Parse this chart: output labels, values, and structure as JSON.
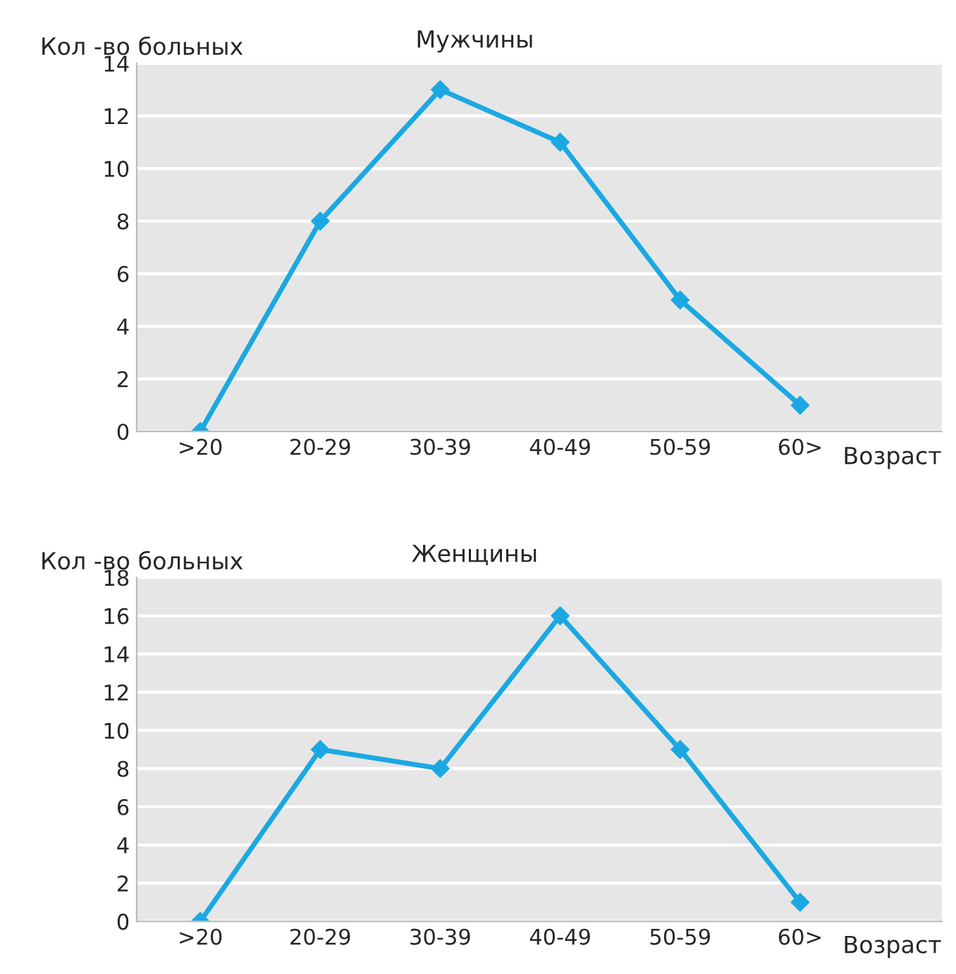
{
  "chart_data": [
    {
      "type": "line",
      "title": "Мужчины",
      "xlabel": "Возраст",
      "ylabel": "Кол -во больных",
      "categories": [
        ">20",
        "20-29",
        "30-39",
        "40-49",
        "50-59",
        "60>"
      ],
      "series": [
        {
          "color": "#1ba8e2",
          "values": [
            0,
            8,
            13,
            11,
            5,
            1
          ]
        }
      ],
      "ylim": [
        0,
        14
      ],
      "yticks": [
        0,
        2,
        4,
        6,
        8,
        10,
        12,
        14
      ],
      "grid": "y",
      "marker": "diamond",
      "line_style": "solid"
    },
    {
      "type": "line",
      "title": "Женщины",
      "xlabel": "Возраст",
      "ylabel": "Кол -во больных",
      "categories": [
        ">20",
        "20-29",
        "30-39",
        "40-49",
        "50-59",
        "60>"
      ],
      "series": [
        {
          "color": "#1ba8e2",
          "values": [
            0,
            9,
            8,
            16,
            9,
            1
          ]
        }
      ],
      "ylim": [
        0,
        18
      ],
      "yticks": [
        0,
        2,
        4,
        6,
        8,
        10,
        12,
        14,
        16,
        18
      ],
      "grid": "y",
      "marker": "diamond",
      "line_style": "solid"
    }
  ]
}
